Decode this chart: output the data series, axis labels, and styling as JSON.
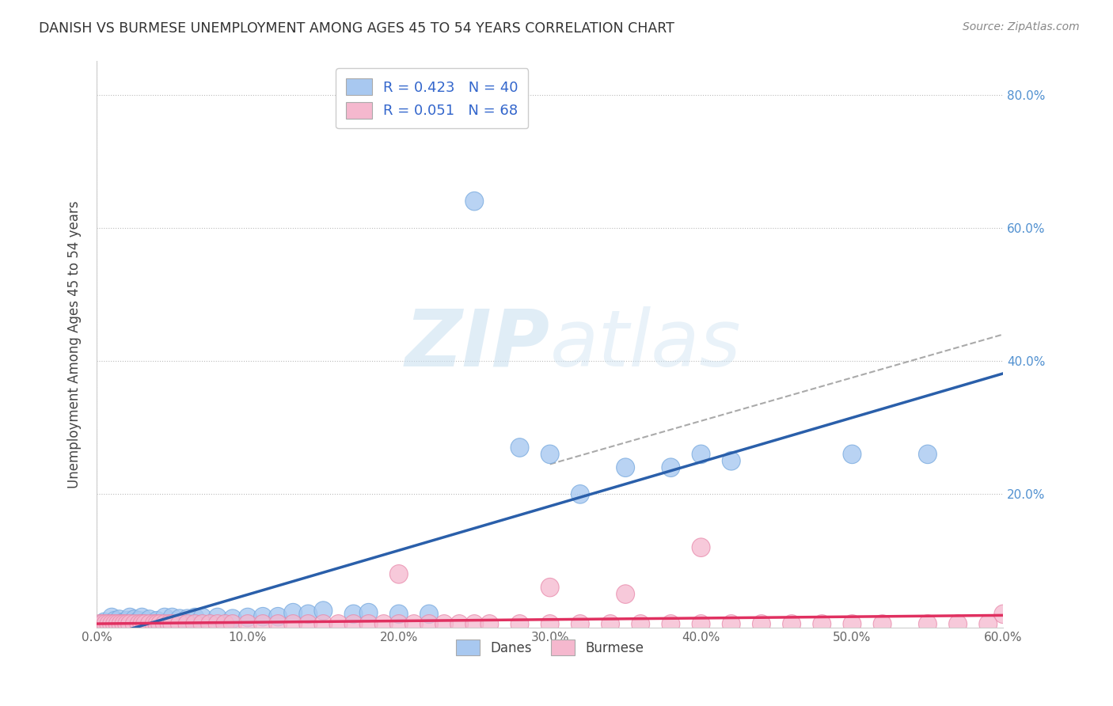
{
  "title": "DANISH VS BURMESE UNEMPLOYMENT AMONG AGES 45 TO 54 YEARS CORRELATION CHART",
  "source": "Source: ZipAtlas.com",
  "ylabel": "Unemployment Among Ages 45 to 54 years",
  "xlim": [
    0.0,
    0.6
  ],
  "ylim": [
    0.0,
    0.85
  ],
  "xticks": [
    0.0,
    0.1,
    0.2,
    0.3,
    0.4,
    0.5,
    0.6
  ],
  "xticklabels": [
    "0.0%",
    "10.0%",
    "20.0%",
    "30.0%",
    "40.0%",
    "50.0%",
    "60.0%"
  ],
  "yticks": [
    0.0,
    0.2,
    0.4,
    0.6,
    0.8
  ],
  "right_yticklabels": [
    "",
    "20.0%",
    "40.0%",
    "60.0%",
    "80.0%"
  ],
  "danes_color": "#a8c8f0",
  "danes_edge_color": "#7aabdf",
  "burmese_color": "#f5b8ce",
  "burmese_edge_color": "#e888aa",
  "danes_line_color": "#2a5faa",
  "burmese_line_color": "#e03060",
  "dashed_line_color": "#aaaaaa",
  "right_tick_color": "#5090d0",
  "watermark_color": "#d5e8f5",
  "background_color": "#ffffff",
  "danes_scatter_x": [
    0.005,
    0.01,
    0.012,
    0.015,
    0.018,
    0.02,
    0.022,
    0.025,
    0.028,
    0.03,
    0.035,
    0.04,
    0.045,
    0.05,
    0.055,
    0.06,
    0.065,
    0.07,
    0.08,
    0.09,
    0.1,
    0.11,
    0.12,
    0.13,
    0.14,
    0.15,
    0.17,
    0.18,
    0.2,
    0.22,
    0.25,
    0.28,
    0.3,
    0.32,
    0.35,
    0.38,
    0.4,
    0.42,
    0.5,
    0.55
  ],
  "danes_scatter_y": [
    0.008,
    0.015,
    0.01,
    0.012,
    0.008,
    0.01,
    0.015,
    0.012,
    0.01,
    0.015,
    0.012,
    0.01,
    0.015,
    0.015,
    0.013,
    0.013,
    0.015,
    0.015,
    0.015,
    0.013,
    0.015,
    0.016,
    0.016,
    0.022,
    0.02,
    0.025,
    0.02,
    0.022,
    0.02,
    0.02,
    0.64,
    0.27,
    0.26,
    0.2,
    0.24,
    0.24,
    0.26,
    0.25,
    0.26,
    0.26
  ],
  "burmese_scatter_x": [
    0.002,
    0.004,
    0.006,
    0.008,
    0.01,
    0.012,
    0.014,
    0.016,
    0.018,
    0.02,
    0.022,
    0.025,
    0.028,
    0.03,
    0.032,
    0.035,
    0.038,
    0.04,
    0.042,
    0.045,
    0.048,
    0.05,
    0.055,
    0.06,
    0.065,
    0.07,
    0.075,
    0.08,
    0.085,
    0.09,
    0.1,
    0.11,
    0.12,
    0.13,
    0.14,
    0.15,
    0.16,
    0.17,
    0.18,
    0.19,
    0.2,
    0.21,
    0.22,
    0.23,
    0.24,
    0.25,
    0.26,
    0.28,
    0.3,
    0.32,
    0.34,
    0.36,
    0.38,
    0.4,
    0.42,
    0.44,
    0.46,
    0.48,
    0.5,
    0.52,
    0.55,
    0.57,
    0.59,
    0.4,
    0.6,
    0.35,
    0.2,
    0.3
  ],
  "burmese_scatter_y": [
    0.005,
    0.005,
    0.005,
    0.005,
    0.005,
    0.005,
    0.005,
    0.005,
    0.005,
    0.005,
    0.005,
    0.005,
    0.005,
    0.005,
    0.005,
    0.005,
    0.005,
    0.005,
    0.005,
    0.005,
    0.005,
    0.005,
    0.005,
    0.005,
    0.005,
    0.005,
    0.005,
    0.005,
    0.005,
    0.005,
    0.005,
    0.005,
    0.005,
    0.005,
    0.005,
    0.005,
    0.005,
    0.005,
    0.005,
    0.005,
    0.005,
    0.005,
    0.005,
    0.005,
    0.005,
    0.005,
    0.005,
    0.005,
    0.005,
    0.005,
    0.005,
    0.005,
    0.005,
    0.005,
    0.005,
    0.005,
    0.005,
    0.005,
    0.005,
    0.005,
    0.005,
    0.005,
    0.005,
    0.12,
    0.02,
    0.05,
    0.08,
    0.06
  ]
}
